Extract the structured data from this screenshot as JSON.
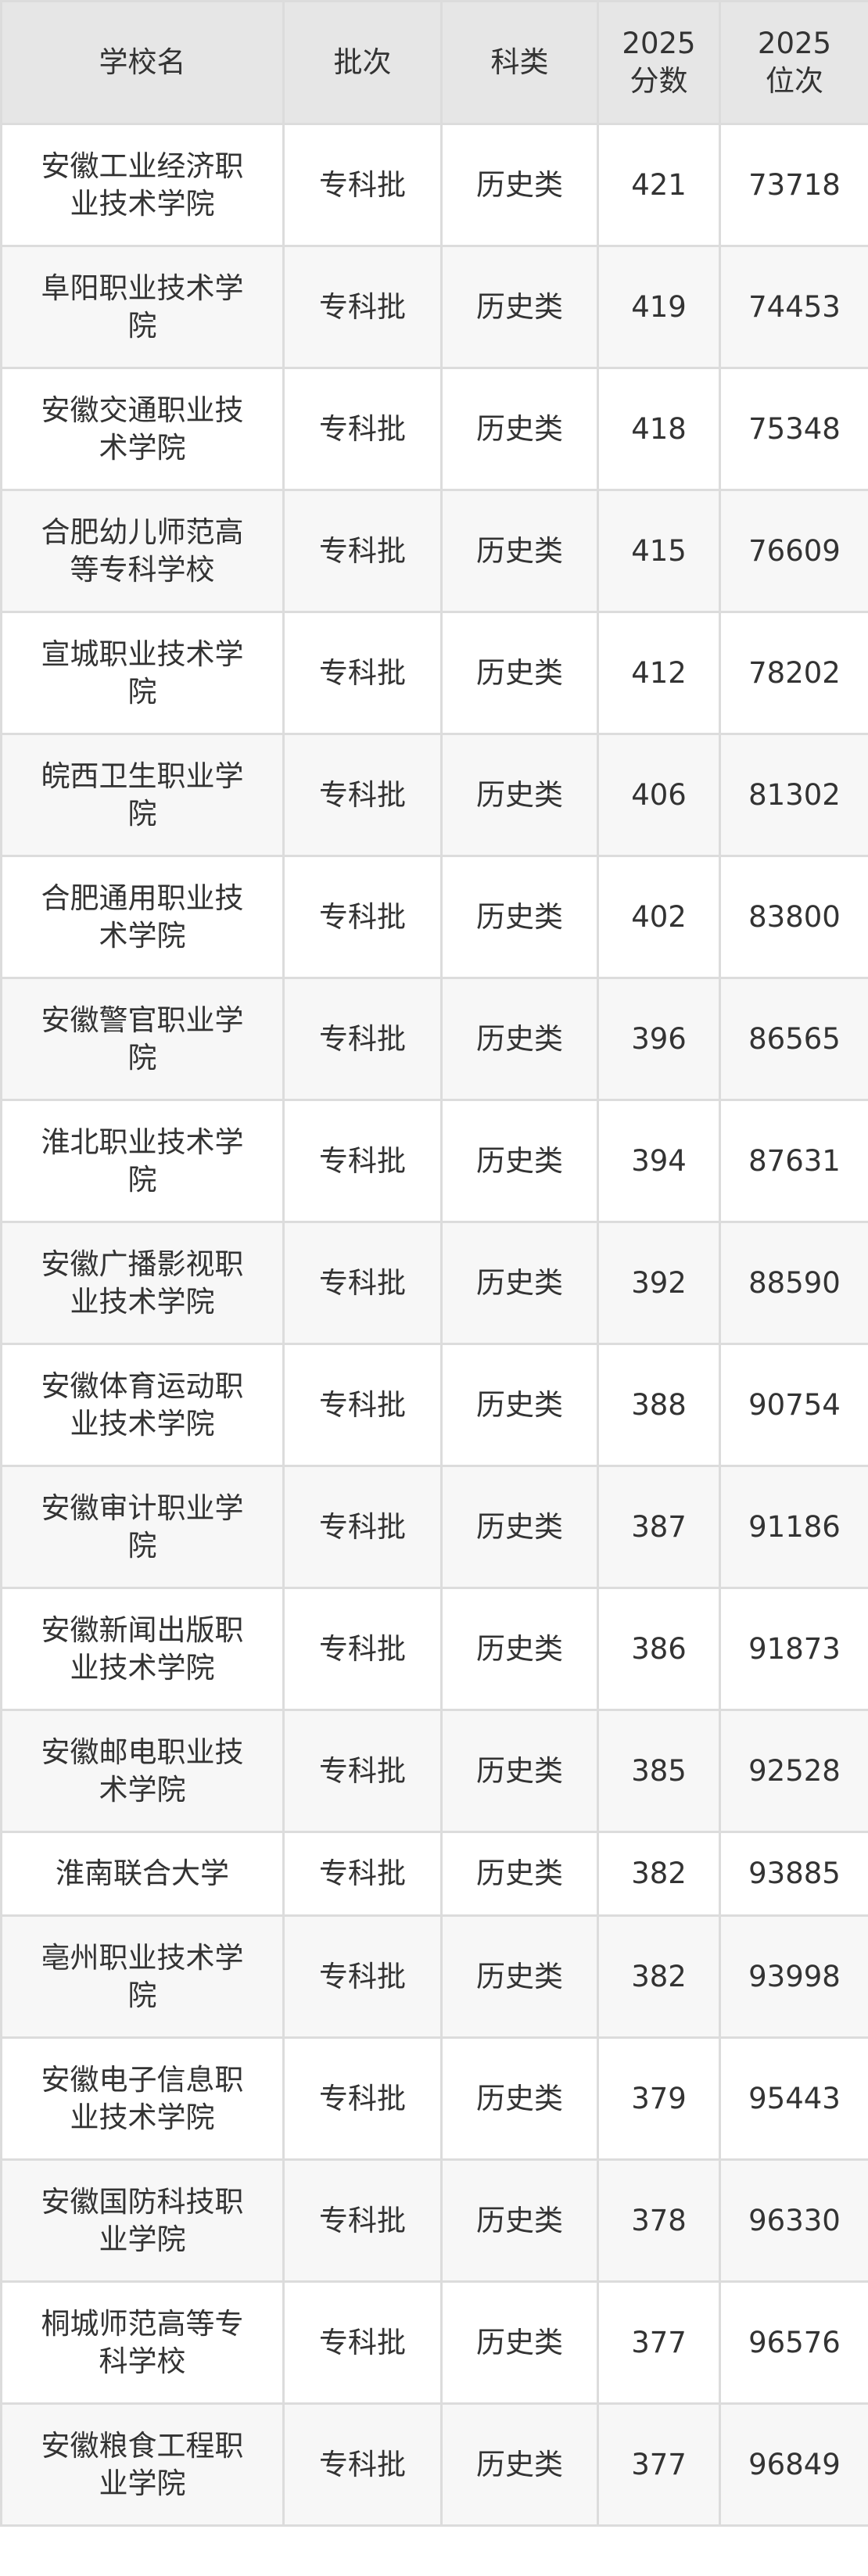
{
  "headers": {
    "school": "学校名",
    "batch": "批次",
    "subject": "科类",
    "score": "2025\n分数",
    "score_lines": [
      "2025",
      "分数"
    ],
    "rank_lines": [
      "2025",
      "位次"
    ]
  },
  "rows": [
    {
      "school": "安徽工业经济职业技术学院",
      "batch": "专科批",
      "subject": "历史类",
      "score": "421",
      "rank": "73718"
    },
    {
      "school": "阜阳职业技术学院",
      "batch": "专科批",
      "subject": "历史类",
      "score": "419",
      "rank": "74453"
    },
    {
      "school": "安徽交通职业技术学院",
      "batch": "专科批",
      "subject": "历史类",
      "score": "418",
      "rank": "75348"
    },
    {
      "school": "合肥幼儿师范高等专科学校",
      "batch": "专科批",
      "subject": "历史类",
      "score": "415",
      "rank": "76609"
    },
    {
      "school": "宣城职业技术学院",
      "batch": "专科批",
      "subject": "历史类",
      "score": "412",
      "rank": "78202"
    },
    {
      "school": "皖西卫生职业学院",
      "batch": "专科批",
      "subject": "历史类",
      "score": "406",
      "rank": "81302"
    },
    {
      "school": "合肥通用职业技术学院",
      "batch": "专科批",
      "subject": "历史类",
      "score": "402",
      "rank": "83800"
    },
    {
      "school": "安徽警官职业学院",
      "batch": "专科批",
      "subject": "历史类",
      "score": "396",
      "rank": "86565"
    },
    {
      "school": "淮北职业技术学院",
      "batch": "专科批",
      "subject": "历史类",
      "score": "394",
      "rank": "87631"
    },
    {
      "school": "安徽广播影视职业技术学院",
      "batch": "专科批",
      "subject": "历史类",
      "score": "392",
      "rank": "88590"
    },
    {
      "school": "安徽体育运动职业技术学院",
      "batch": "专科批",
      "subject": "历史类",
      "score": "388",
      "rank": "90754"
    },
    {
      "school": "安徽审计职业学院",
      "batch": "专科批",
      "subject": "历史类",
      "score": "387",
      "rank": "91186"
    },
    {
      "school": "安徽新闻出版职业技术学院",
      "batch": "专科批",
      "subject": "历史类",
      "score": "386",
      "rank": "91873"
    },
    {
      "school": "安徽邮电职业技术学院",
      "batch": "专科批",
      "subject": "历史类",
      "score": "385",
      "rank": "92528"
    },
    {
      "school": "淮南联合大学",
      "batch": "专科批",
      "subject": "历史类",
      "score": "382",
      "rank": "93885"
    },
    {
      "school": "亳州职业技术学院",
      "batch": "专科批",
      "subject": "历史类",
      "score": "382",
      "rank": "93998"
    },
    {
      "school": "安徽电子信息职业技术学院",
      "batch": "专科批",
      "subject": "历史类",
      "score": "379",
      "rank": "95443"
    },
    {
      "school": "安徽国防科技职业学院",
      "batch": "专科批",
      "subject": "历史类",
      "score": "378",
      "rank": "96330"
    },
    {
      "school": "桐城师范高等专科学校",
      "batch": "专科批",
      "subject": "历史类",
      "score": "377",
      "rank": "96576"
    },
    {
      "school": "安徽粮食工程职业学院",
      "batch": "专科批",
      "subject": "历史类",
      "score": "377",
      "rank": "96849"
    }
  ]
}
